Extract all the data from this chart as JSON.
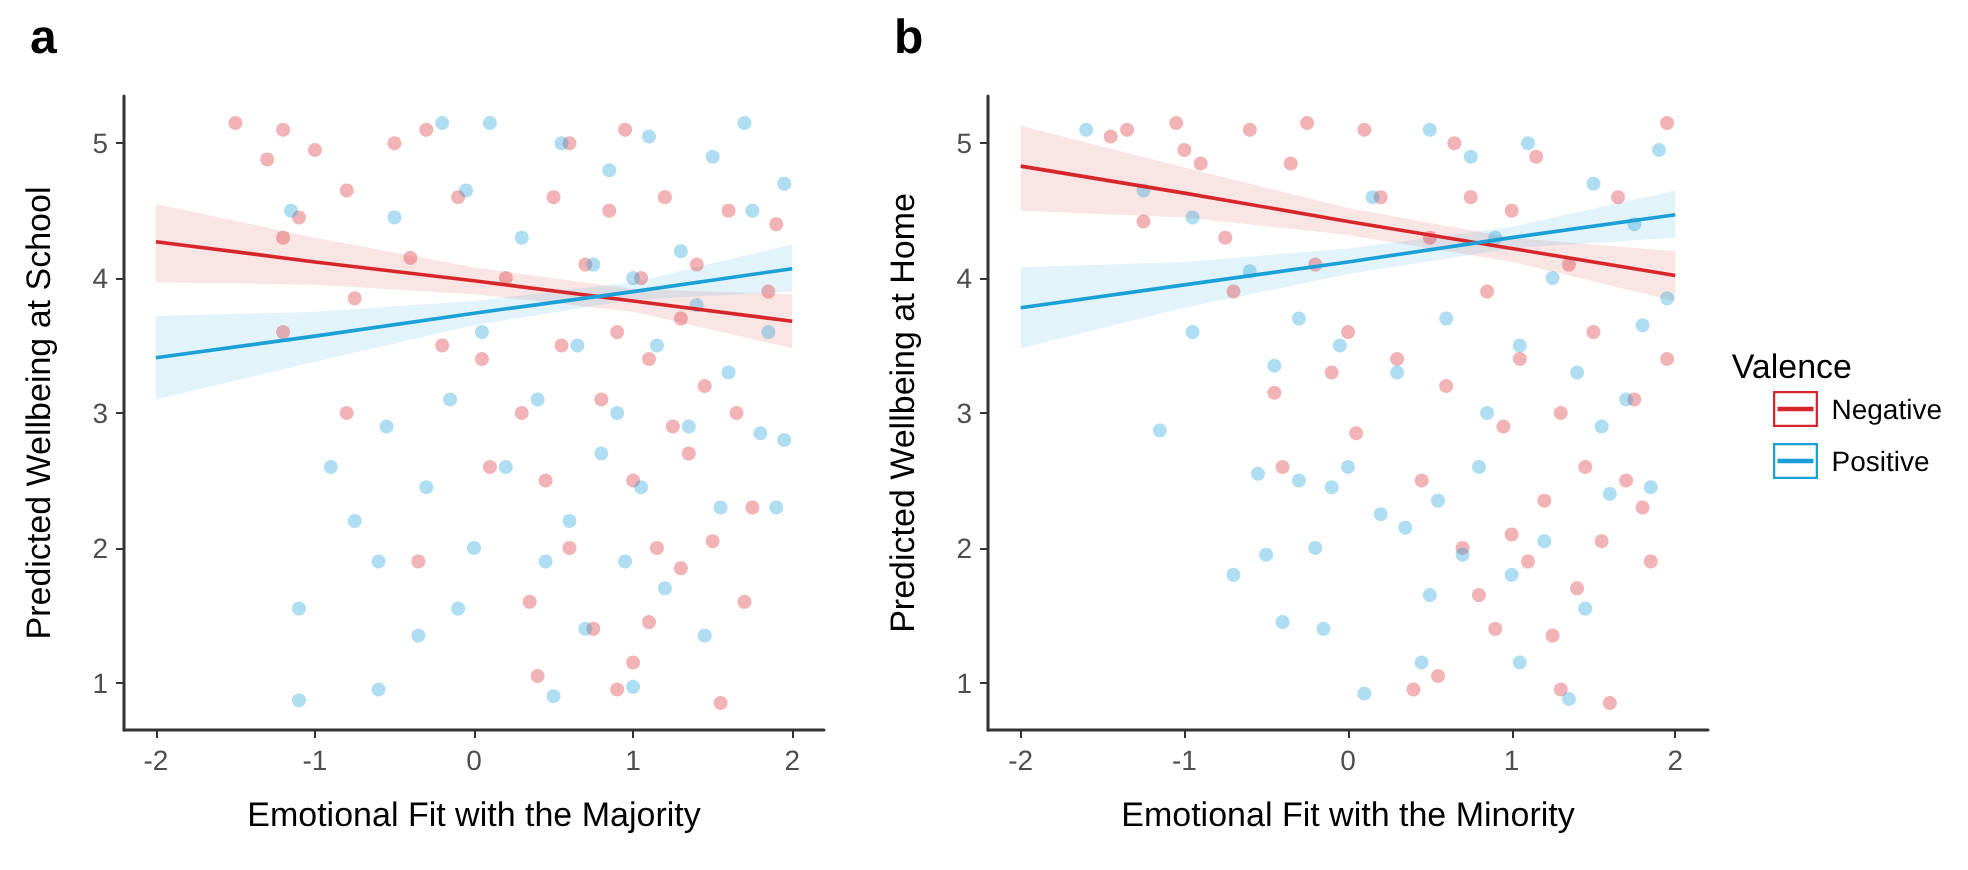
{
  "chart_data": [
    {
      "type": "scatter",
      "title": "a",
      "xlabel": "Emotional Fit with the Majority",
      "ylabel": "Predicted Wellbeing at School",
      "xlim": [
        -2.2,
        2.2
      ],
      "xticks": [
        -2,
        -1,
        0,
        1,
        2
      ],
      "ylim": [
        0.65,
        5.35
      ],
      "yticks": [
        1,
        2,
        3,
        4,
        5
      ],
      "grid": false,
      "legend": false,
      "series": [
        {
          "marker": "circle",
          "color": "#d7262b",
          "x": [
            -1.5,
            -1.3,
            -1.2,
            -1.1,
            -1.0,
            -0.8,
            -0.8,
            -1.2,
            -1.2,
            -0.75,
            -0.5,
            -0.4,
            -0.3,
            -0.2,
            -0.35,
            -0.1,
            0.05,
            0.1,
            0.2,
            0.3,
            0.35,
            0.4,
            0.45,
            0.5,
            0.55,
            0.6,
            0.6,
            0.7,
            0.75,
            0.8,
            0.85,
            0.9,
            0.9,
            0.95,
            1.0,
            1.0,
            1.05,
            1.1,
            1.1,
            1.15,
            1.2,
            1.25,
            1.3,
            1.3,
            1.35,
            1.4,
            1.45,
            1.5,
            1.55,
            1.6,
            1.65,
            1.7,
            1.75,
            1.85,
            1.9
          ],
          "values": [
            5.15,
            4.88,
            5.1,
            4.45,
            4.95,
            4.65,
            3.0,
            4.3,
            3.6,
            3.85,
            5.0,
            4.15,
            5.1,
            3.5,
            1.9,
            4.6,
            3.4,
            2.6,
            4.0,
            3.0,
            1.6,
            1.05,
            2.5,
            4.6,
            3.5,
            2.0,
            5.0,
            4.1,
            1.4,
            3.1,
            4.5,
            0.95,
            3.6,
            5.1,
            2.5,
            1.15,
            4.0,
            3.4,
            1.45,
            2.0,
            4.6,
            2.9,
            3.7,
            1.85,
            2.7,
            4.1,
            3.2,
            2.05,
            0.85,
            4.5,
            3.0,
            1.6,
            2.3,
            3.9,
            4.4
          ]
        },
        {
          "marker": "circle",
          "color": "#1a9fd6",
          "x": [
            -1.15,
            -1.1,
            -1.1,
            -0.9,
            -0.75,
            -0.6,
            -0.6,
            -0.55,
            -0.5,
            -0.35,
            -0.3,
            -0.2,
            -0.15,
            -0.1,
            -0.05,
            0.0,
            0.05,
            0.1,
            0.2,
            0.3,
            0.4,
            0.45,
            0.5,
            0.55,
            0.6,
            0.65,
            0.7,
            0.75,
            0.8,
            0.85,
            0.9,
            0.95,
            1.0,
            1.0,
            1.05,
            1.1,
            1.15,
            1.2,
            1.3,
            1.35,
            1.4,
            1.45,
            1.5,
            1.55,
            1.6,
            1.7,
            1.75,
            1.8,
            1.85,
            1.9,
            1.95,
            1.95
          ],
          "values": [
            4.5,
            1.55,
            0.87,
            2.6,
            2.2,
            1.9,
            0.95,
            2.9,
            4.45,
            1.35,
            2.45,
            5.15,
            3.1,
            1.55,
            4.65,
            2.0,
            3.6,
            5.15,
            2.6,
            4.3,
            3.1,
            1.9,
            0.9,
            5.0,
            2.2,
            3.5,
            1.4,
            4.1,
            2.7,
            4.8,
            3.0,
            1.9,
            4.0,
            0.97,
            2.45,
            5.05,
            3.5,
            1.7,
            4.2,
            2.9,
            3.8,
            1.35,
            4.9,
            2.3,
            3.3,
            5.15,
            4.5,
            2.85,
            3.6,
            2.3,
            4.7,
            2.8
          ]
        },
        {
          "type": "line",
          "marker": "none",
          "color": "#d7262b",
          "x": [
            -2,
            -1,
            0,
            1,
            2
          ],
          "values": [
            4.27,
            4.12,
            3.98,
            3.83,
            3.68
          ],
          "lower": [
            3.97,
            3.95,
            3.88,
            3.75,
            3.48
          ],
          "upper": [
            4.55,
            4.3,
            4.08,
            3.92,
            3.88
          ]
        },
        {
          "type": "line",
          "marker": "none",
          "color": "#1a9fd6",
          "x": [
            -2,
            -1,
            0,
            1,
            2
          ],
          "values": [
            3.41,
            3.57,
            3.74,
            3.9,
            4.07
          ],
          "lower": [
            3.1,
            3.38,
            3.65,
            3.84,
            3.9
          ],
          "upper": [
            3.72,
            3.75,
            3.83,
            3.97,
            4.25
          ]
        }
      ]
    },
    {
      "type": "scatter",
      "title": "b",
      "xlabel": "Emotional Fit with the Minority",
      "ylabel": "Predicted Wellbeing at Home",
      "legend_title": "Valence",
      "xlim": [
        -2.2,
        2.2
      ],
      "xticks": [
        -2,
        -1,
        0,
        1,
        2
      ],
      "ylim": [
        0.65,
        5.35
      ],
      "yticks": [
        1,
        2,
        3,
        4,
        5
      ],
      "grid": false,
      "legend": "right",
      "series": [
        {
          "marker": "circle",
          "color": "#d7262b",
          "x": [
            -1.45,
            -1.35,
            -1.25,
            -1.05,
            -1.0,
            -0.9,
            -0.75,
            -0.7,
            -0.6,
            -0.45,
            -0.4,
            -0.35,
            -0.25,
            -0.2,
            -0.1,
            0.0,
            0.05,
            0.1,
            0.2,
            0.3,
            0.4,
            0.45,
            0.5,
            0.55,
            0.6,
            0.65,
            0.7,
            0.75,
            0.8,
            0.85,
            0.9,
            0.95,
            1.0,
            1.0,
            1.05,
            1.1,
            1.15,
            1.2,
            1.25,
            1.3,
            1.3,
            1.35,
            1.4,
            1.45,
            1.5,
            1.55,
            1.6,
            1.65,
            1.7,
            1.75,
            1.8,
            1.85,
            1.95,
            1.95
          ],
          "values": [
            5.05,
            5.1,
            4.42,
            5.15,
            4.95,
            4.85,
            4.3,
            3.9,
            5.1,
            3.15,
            2.6,
            4.85,
            5.15,
            4.1,
            3.3,
            3.6,
            2.85,
            5.1,
            4.6,
            3.4,
            0.95,
            2.5,
            4.3,
            1.05,
            3.2,
            5.0,
            2.0,
            4.6,
            1.65,
            3.9,
            1.4,
            2.9,
            4.5,
            2.1,
            3.4,
            1.9,
            4.9,
            2.35,
            1.35,
            3.0,
            0.95,
            4.1,
            1.7,
            2.6,
            3.6,
            2.05,
            0.85,
            4.6,
            2.5,
            3.1,
            2.3,
            1.9,
            5.15,
            3.4
          ]
        },
        {
          "marker": "circle",
          "color": "#1a9fd6",
          "x": [
            -1.6,
            -1.25,
            -1.15,
            -0.95,
            -0.95,
            -0.7,
            -0.6,
            -0.55,
            -0.5,
            -0.45,
            -0.4,
            -0.3,
            -0.3,
            -0.2,
            -0.15,
            -0.1,
            -0.05,
            0.0,
            0.1,
            0.15,
            0.2,
            0.3,
            0.35,
            0.45,
            0.5,
            0.5,
            0.55,
            0.6,
            0.7,
            0.75,
            0.8,
            0.85,
            0.9,
            1.0,
            1.05,
            1.05,
            1.1,
            1.2,
            1.25,
            1.35,
            1.4,
            1.45,
            1.5,
            1.55,
            1.6,
            1.7,
            1.75,
            1.8,
            1.85,
            1.9,
            1.95
          ],
          "values": [
            5.1,
            4.65,
            2.87,
            4.45,
            3.6,
            1.8,
            4.05,
            2.55,
            1.95,
            3.35,
            1.45,
            3.7,
            2.5,
            2.0,
            1.4,
            2.45,
            3.5,
            2.6,
            0.92,
            4.6,
            2.25,
            3.3,
            2.15,
            1.15,
            5.1,
            1.65,
            2.35,
            3.7,
            1.95,
            4.9,
            2.6,
            3.0,
            4.3,
            1.8,
            3.5,
            1.15,
            5.0,
            2.05,
            4.0,
            0.88,
            3.3,
            1.55,
            4.7,
            2.9,
            2.4,
            3.1,
            4.4,
            3.65,
            2.45,
            4.95,
            3.85
          ]
        },
        {
          "type": "line",
          "name": "Negative",
          "marker": "none",
          "color": "#d7262b",
          "x": [
            -2,
            -1,
            0,
            1,
            2
          ],
          "values": [
            4.83,
            4.63,
            4.42,
            4.22,
            4.02
          ],
          "lower": [
            4.5,
            4.45,
            4.32,
            4.12,
            3.83
          ],
          "upper": [
            5.13,
            4.82,
            4.52,
            4.3,
            4.2
          ]
        },
        {
          "type": "line",
          "name": "Positive",
          "marker": "none",
          "color": "#1a9fd6",
          "x": [
            -2,
            -1,
            0,
            1,
            2
          ],
          "values": [
            3.78,
            3.95,
            4.12,
            4.3,
            4.47
          ],
          "lower": [
            3.48,
            3.78,
            4.03,
            4.22,
            4.3
          ],
          "upper": [
            4.08,
            4.12,
            4.22,
            4.38,
            4.65
          ]
        }
      ]
    }
  ]
}
